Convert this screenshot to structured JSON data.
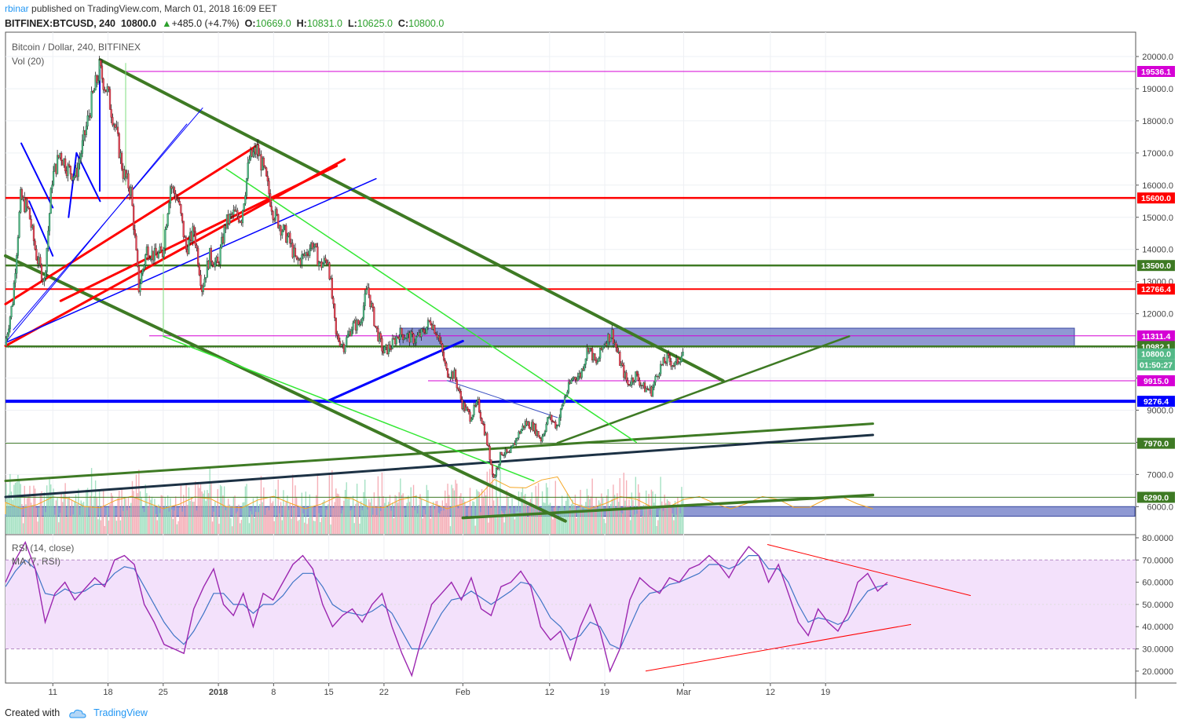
{
  "header": {
    "user": "rbinar",
    "published_text": " published on TradingView.com, March 01, 2018 16:09 EET",
    "symbol": "BITFINEX:BTCUSD, 240",
    "last": "10800.0",
    "change_arrow": "▲",
    "change": "+485.0 (+4.7%)",
    "o_label": "O:",
    "o_value": "10669.0",
    "h_label": "H:",
    "h_value": "10831.0",
    "l_label": "L:",
    "l_value": "10625.0",
    "c_label": "C:",
    "c_value": "10800.0"
  },
  "pane_labels": {
    "main_title": "Bitcoin / Dollar, 240, BITFINEX",
    "volume": "Vol (20)",
    "rsi": "RSI (14, close)",
    "rsi_ma": "MA (7, RSI)"
  },
  "footer": {
    "created_with": "Created with",
    "brand": "TradingView"
  },
  "colors": {
    "up_candle": "#53b987",
    "down_candle": "#eb4d5c",
    "green_line": "#3e7a24",
    "red_line": "#ff0000",
    "blue_line": "#0000ff",
    "lime_line": "#33e833",
    "navy_line": "#1c3144",
    "magenta_line": "#d500d5",
    "zone_fill": "#6a77c4",
    "rsi_band": "#f3e1fb",
    "rsi_line": "#9c27b0",
    "rsi_ma_line": "#3f74c6"
  },
  "chart_data": [
    {
      "type": "candlestick",
      "title": "Bitcoin / Dollar, 240, BITFINEX",
      "x_ticks": [
        "11",
        "18",
        "25",
        "2018",
        "8",
        "15",
        "22",
        "Feb",
        "12",
        "19",
        "Mar",
        "12",
        "19"
      ],
      "price_ticks": [
        "20000.0",
        "19000.0",
        "18000.0",
        "17000.0",
        "16000.0",
        "15000.0",
        "14000.0",
        "13000.0",
        "12000.0",
        "11000.0",
        "10000.0",
        "9000.0",
        "8000.0",
        "7000.0",
        "6000.0"
      ],
      "x_range": [
        "2017-12-05",
        "2018-03-25"
      ],
      "y_range": [
        5800,
        20400
      ],
      "horizontal_levels": [
        {
          "label": "19536.1",
          "color": "#d500d5"
        },
        {
          "label": "15600.0",
          "color": "#ff0000"
        },
        {
          "label": "13500.0",
          "color": "#3e7a24"
        },
        {
          "label": "12766.4",
          "color": "#ff0000"
        },
        {
          "label": "11311.4",
          "color": "#d500d5"
        },
        {
          "label": "10982.1",
          "color": "#3e7a24"
        },
        {
          "label": "10800.0",
          "color": "#53b987"
        },
        {
          "label": "01:50:27",
          "color": "#53b987"
        },
        {
          "label": "9915.0",
          "color": "#d500d5"
        },
        {
          "label": "9276.4",
          "color": "#0000ff"
        },
        {
          "label": "7970.0",
          "color": "#3e7a24"
        },
        {
          "label": "6290.0",
          "color": "#3e7a24"
        }
      ],
      "price_path": [
        [
          "2017-12-05",
          11000
        ],
        [
          "2017-12-06",
          12400
        ],
        [
          "2017-12-07",
          15600
        ],
        [
          "2017-12-08",
          15200
        ],
        [
          "2017-12-09",
          13800
        ],
        [
          "2017-12-10",
          13000
        ],
        [
          "2017-12-11",
          16200
        ],
        [
          "2017-12-12",
          17000
        ],
        [
          "2017-12-13",
          16500
        ],
        [
          "2017-12-14",
          16300
        ],
        [
          "2017-12-15",
          17400
        ],
        [
          "2017-12-16",
          18600
        ],
        [
          "2017-12-17",
          19600
        ],
        [
          "2017-12-18",
          18900
        ],
        [
          "2017-12-19",
          17800
        ],
        [
          "2017-12-20",
          16400
        ],
        [
          "2017-12-21",
          15800
        ],
        [
          "2017-12-22",
          12800
        ],
        [
          "2017-12-23",
          14000
        ],
        [
          "2017-12-24",
          13800
        ],
        [
          "2017-12-25",
          13900
        ],
        [
          "2017-12-26",
          16000
        ],
        [
          "2017-12-27",
          15500
        ],
        [
          "2017-12-28",
          14000
        ],
        [
          "2017-12-29",
          14600
        ],
        [
          "2017-12-30",
          12800
        ],
        [
          "2017-12-31",
          13800
        ],
        [
          "2018-01-01",
          13500
        ],
        [
          "2018-01-02",
          14800
        ],
        [
          "2018-01-03",
          15100
        ],
        [
          "2018-01-04",
          15000
        ],
        [
          "2018-01-05",
          16800
        ],
        [
          "2018-01-06",
          17100
        ],
        [
          "2018-01-07",
          16300
        ],
        [
          "2018-01-08",
          15200
        ],
        [
          "2018-01-09",
          14700
        ],
        [
          "2018-01-10",
          14300
        ],
        [
          "2018-01-11",
          13600
        ],
        [
          "2018-01-12",
          13800
        ],
        [
          "2018-01-13",
          14200
        ],
        [
          "2018-01-14",
          13500
        ],
        [
          "2018-01-15",
          13700
        ],
        [
          "2018-01-16",
          11300
        ],
        [
          "2018-01-17",
          11000
        ],
        [
          "2018-01-18",
          11600
        ],
        [
          "2018-01-19",
          11700
        ],
        [
          "2018-01-20",
          12800
        ],
        [
          "2018-01-21",
          11600
        ],
        [
          "2018-01-22",
          10800
        ],
        [
          "2018-01-23",
          11000
        ],
        [
          "2018-01-24",
          11400
        ],
        [
          "2018-01-25",
          11300
        ],
        [
          "2018-01-26",
          11200
        ],
        [
          "2018-01-27",
          11400
        ],
        [
          "2018-01-28",
          11800
        ],
        [
          "2018-01-29",
          11300
        ],
        [
          "2018-01-30",
          10200
        ],
        [
          "2018-01-31",
          10100
        ],
        [
          "2018-02-01",
          9200
        ],
        [
          "2018-02-02",
          8800
        ],
        [
          "2018-02-03",
          9200
        ],
        [
          "2018-02-04",
          8200
        ],
        [
          "2018-02-05",
          6900
        ],
        [
          "2018-02-06",
          7700
        ],
        [
          "2018-02-07",
          7600
        ],
        [
          "2018-02-08",
          8200
        ],
        [
          "2018-02-09",
          8600
        ],
        [
          "2018-02-10",
          8500
        ],
        [
          "2018-02-11",
          8100
        ],
        [
          "2018-02-12",
          8800
        ],
        [
          "2018-02-13",
          8500
        ],
        [
          "2018-02-14",
          9400
        ],
        [
          "2018-02-15",
          10000
        ],
        [
          "2018-02-16",
          10100
        ],
        [
          "2018-02-17",
          11000
        ],
        [
          "2018-02-18",
          10400
        ],
        [
          "2018-02-19",
          11100
        ],
        [
          "2018-02-20",
          11400
        ],
        [
          "2018-02-21",
          10500
        ],
        [
          "2018-02-22",
          9800
        ],
        [
          "2018-02-23",
          10100
        ],
        [
          "2018-02-24",
          9700
        ],
        [
          "2018-02-25",
          9600
        ],
        [
          "2018-02-26",
          10300
        ],
        [
          "2018-02-27",
          10600
        ],
        [
          "2018-02-28",
          10400
        ],
        [
          "2018-03-01",
          10800
        ]
      ]
    },
    {
      "type": "line",
      "title": "RSI (14, close)",
      "rsi_ticks": [
        "80.0000",
        "70.0000",
        "60.0000",
        "50.0000",
        "40.0000",
        "30.0000",
        "20.0000"
      ],
      "y_range": [
        15,
        82
      ],
      "band": [
        30,
        70
      ],
      "series": [
        {
          "name": "RSI (14, close)",
          "values": [
            60,
            70,
            78,
            66,
            42,
            55,
            60,
            52,
            57,
            62,
            58,
            70,
            72,
            68,
            50,
            42,
            32,
            30,
            28,
            48,
            58,
            66,
            50,
            45,
            55,
            40,
            55,
            52,
            60,
            68,
            72,
            66,
            50,
            40,
            45,
            48,
            42,
            50,
            55,
            40,
            28,
            18,
            35,
            50,
            55,
            60,
            52,
            62,
            48,
            45,
            58,
            60,
            65,
            58,
            40,
            34,
            38,
            25,
            40,
            50,
            38,
            20,
            30,
            52,
            62,
            58,
            55,
            62,
            60,
            66,
            68,
            72,
            68,
            62,
            70,
            76,
            72,
            60,
            68,
            55,
            42,
            36,
            48,
            42,
            38,
            46,
            60,
            64,
            56,
            60
          ]
        },
        {
          "name": "MA (7, RSI)",
          "values": [
            58,
            65,
            70,
            66,
            55,
            54,
            57,
            55,
            56,
            59,
            59,
            64,
            67,
            66,
            58,
            50,
            42,
            36,
            32,
            38,
            46,
            55,
            55,
            50,
            50,
            46,
            50,
            50,
            54,
            60,
            64,
            64,
            58,
            50,
            47,
            46,
            45,
            47,
            50,
            46,
            38,
            30,
            30,
            38,
            46,
            52,
            53,
            56,
            53,
            50,
            53,
            56,
            60,
            59,
            52,
            44,
            40,
            34,
            36,
            42,
            40,
            32,
            30,
            40,
            50,
            55,
            56,
            59,
            60,
            62,
            64,
            68,
            68,
            66,
            68,
            72,
            72,
            66,
            66,
            60,
            50,
            42,
            44,
            43,
            41,
            43,
            50,
            56,
            58,
            59
          ]
        }
      ],
      "trendlines": "upper descending (77 → 54), lower ascending (20 → 41)"
    }
  ]
}
